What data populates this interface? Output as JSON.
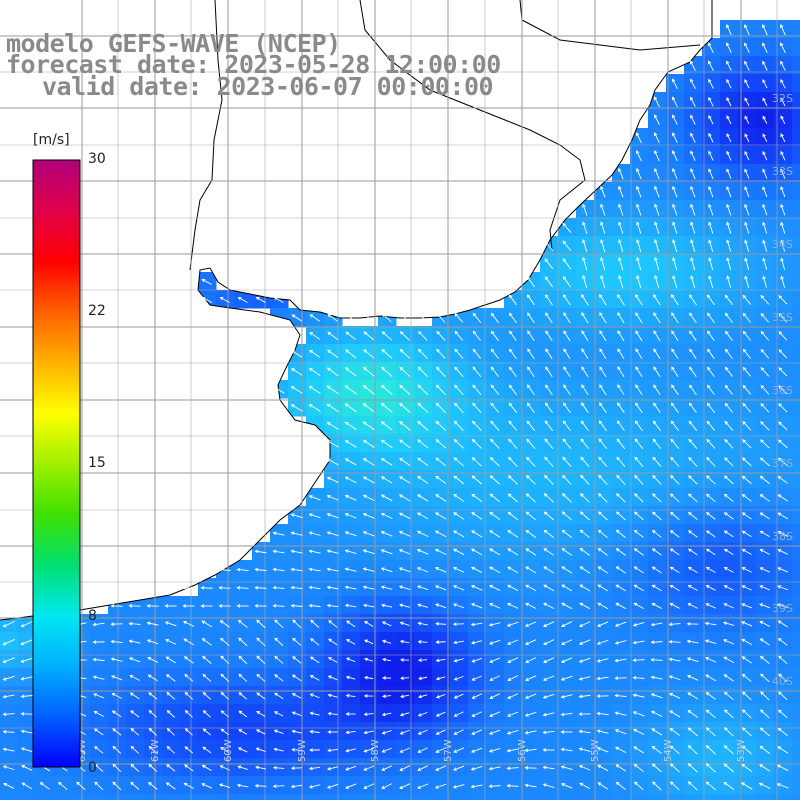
{
  "title": {
    "model": "modelo GEFS-WAVE (NCEP)",
    "forecast": "forecast date: 2023-05-28 12:00:00",
    "valid": "valid date: 2023-06-07 00:00:00"
  },
  "colorbar": {
    "unit": "[m/s]",
    "ticks": [
      "30",
      "22",
      "15",
      "8",
      "0"
    ],
    "tick_values": [
      30,
      22,
      15,
      8,
      0
    ],
    "colors": [
      "#0000ff",
      "#0060ff",
      "#00b0ff",
      "#00e8f0",
      "#00e070",
      "#40e000",
      "#a0f000",
      "#ffff00",
      "#ffb000",
      "#ff6000",
      "#ff0000",
      "#e0004a",
      "#b0007a"
    ]
  },
  "map": {
    "region": "South America east coast / Rio de la Plata and Patagonian shelf",
    "lat_labels": [
      "32S",
      "33S",
      "34S",
      "35S",
      "36S",
      "37S",
      "38S",
      "39S",
      "40S"
    ],
    "lon_labels": [
      "62W",
      "61W",
      "60W",
      "59W",
      "58W",
      "57W",
      "56W",
      "55W",
      "54W",
      "53W"
    ],
    "ocean_colors": {
      "low": "#0f2fe8",
      "mid": "#1e7cff",
      "high": "#1ec8ff",
      "max": "#2ee8d8"
    },
    "land_color": "#ffffff",
    "grid_color": "#9a9a9a",
    "arrow_color": "#ffffff"
  }
}
